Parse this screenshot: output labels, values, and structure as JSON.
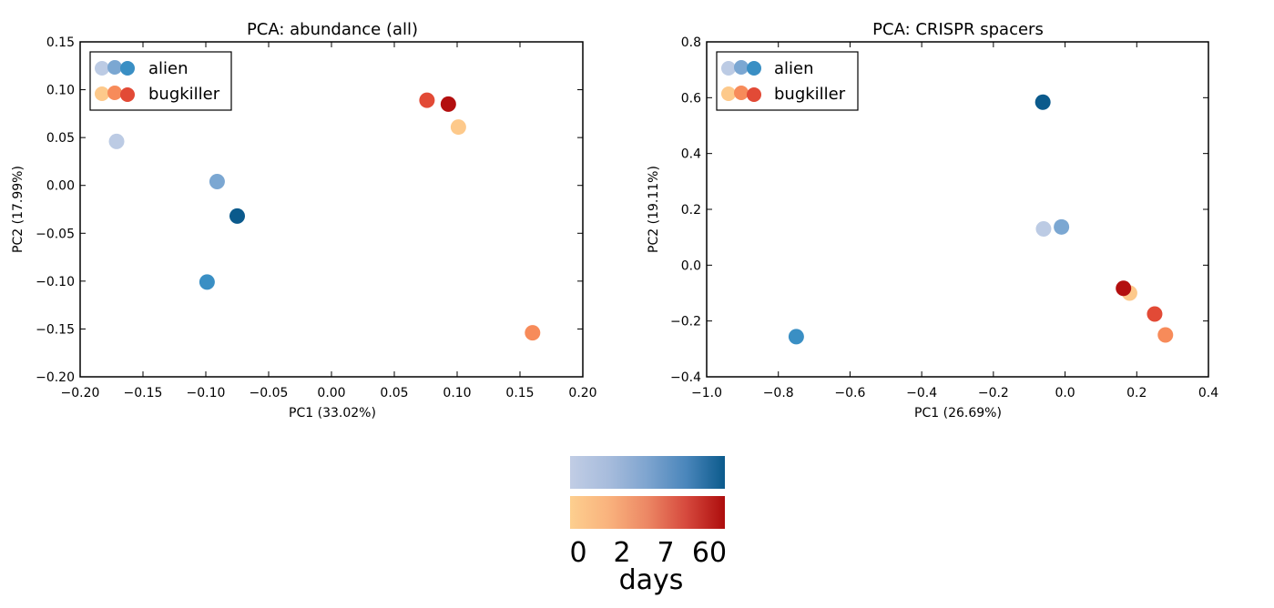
{
  "chart_data": [
    {
      "type": "scatter",
      "title": "PCA: abundance (all)",
      "xlabel": "PC1 (33.02%)",
      "ylabel": "PC2 (17.99%)",
      "xlim": [
        -0.2,
        0.2
      ],
      "ylim": [
        -0.2,
        0.15
      ],
      "xticks": [
        "−0.20",
        "−0.15",
        "−0.10",
        "−0.05",
        "0.00",
        "0.05",
        "0.10",
        "0.15",
        "0.20"
      ],
      "yticks": [
        "−0.20",
        "−0.15",
        "−0.10",
        "−0.05",
        "0.00",
        "0.05",
        "0.10",
        "0.15"
      ],
      "xtick_values": [
        -0.2,
        -0.15,
        -0.1,
        -0.05,
        0.0,
        0.05,
        0.1,
        0.15,
        0.2
      ],
      "ytick_values": [
        -0.2,
        -0.15,
        -0.1,
        -0.05,
        0.0,
        0.05,
        0.1,
        0.15
      ],
      "grid": false,
      "legend": "top-left",
      "series": [
        {
          "name": "alien",
          "points": [
            {
              "day": "0",
              "x": -0.171,
              "y": 0.046,
              "color": "#bccbe4"
            },
            {
              "day": "2",
              "x": -0.091,
              "y": 0.004,
              "color": "#7ba7d2"
            },
            {
              "day": "7",
              "x": -0.099,
              "y": -0.101,
              "color": "#3a8fc4"
            },
            {
              "day": "60",
              "x": -0.075,
              "y": -0.032,
              "color": "#0b5a8c"
            }
          ]
        },
        {
          "name": "bugkiller",
          "points": [
            {
              "day": "0",
              "x": 0.101,
              "y": 0.061,
              "color": "#fdc98b"
            },
            {
              "day": "2",
              "x": 0.16,
              "y": -0.154,
              "color": "#f78b5a"
            },
            {
              "day": "7",
              "x": 0.076,
              "y": 0.089,
              "color": "#e24a36"
            },
            {
              "day": "60",
              "x": 0.093,
              "y": 0.085,
              "color": "#b30f0f"
            }
          ]
        }
      ]
    },
    {
      "type": "scatter",
      "title": "PCA: CRISPR spacers",
      "xlabel": "PC1 (26.69%)",
      "ylabel": "PC2 (19.11%)",
      "xlim": [
        -1.0,
        0.4
      ],
      "ylim": [
        -0.4,
        0.8
      ],
      "xticks": [
        "−1.0",
        "−0.8",
        "−0.6",
        "−0.4",
        "−0.2",
        "0.0",
        "0.2",
        "0.4"
      ],
      "yticks": [
        "−0.4",
        "−0.2",
        "0.0",
        "0.2",
        "0.4",
        "0.6",
        "0.8"
      ],
      "xtick_values": [
        -1.0,
        -0.8,
        -0.6,
        -0.4,
        -0.2,
        0.0,
        0.2,
        0.4
      ],
      "ytick_values": [
        -0.4,
        -0.2,
        0.0,
        0.2,
        0.4,
        0.6,
        0.8
      ],
      "grid": false,
      "legend": "top-left",
      "series": [
        {
          "name": "alien",
          "points": [
            {
              "day": "0",
              "x": -0.06,
              "y": 0.13,
              "color": "#bccbe4"
            },
            {
              "day": "2",
              "x": -0.01,
              "y": 0.137,
              "color": "#7ba7d2"
            },
            {
              "day": "7",
              "x": -0.75,
              "y": -0.256,
              "color": "#3a8fc4"
            },
            {
              "day": "60",
              "x": -0.062,
              "y": 0.584,
              "color": "#0b5a8c"
            }
          ]
        },
        {
          "name": "bugkiller",
          "points": [
            {
              "day": "0",
              "x": 0.18,
              "y": -0.1,
              "color": "#fdc98b"
            },
            {
              "day": "2",
              "x": 0.28,
              "y": -0.25,
              "color": "#f78b5a"
            },
            {
              "day": "7",
              "x": 0.25,
              "y": -0.175,
              "color": "#e24a36"
            },
            {
              "day": "60",
              "x": 0.163,
              "y": -0.083,
              "color": "#b30f0f"
            }
          ]
        }
      ]
    }
  ],
  "legend_colors": {
    "alien": [
      "#bccbe4",
      "#7ba7d2",
      "#3a8fc4"
    ],
    "bugkiller": [
      "#fdc98b",
      "#f78b5a",
      "#e24a36"
    ]
  },
  "colorbar": {
    "blue_gradient": [
      "#c1cde5",
      "#a7bcdc",
      "#7ea4cf",
      "#4a86bb",
      "#0b5a8c"
    ],
    "orange_gradient": [
      "#fdcf8f",
      "#f9b27d",
      "#ec8764",
      "#d6493d",
      "#ad0d0d"
    ],
    "tick_labels": [
      "0",
      "2",
      "7",
      "60"
    ],
    "label": "days"
  }
}
